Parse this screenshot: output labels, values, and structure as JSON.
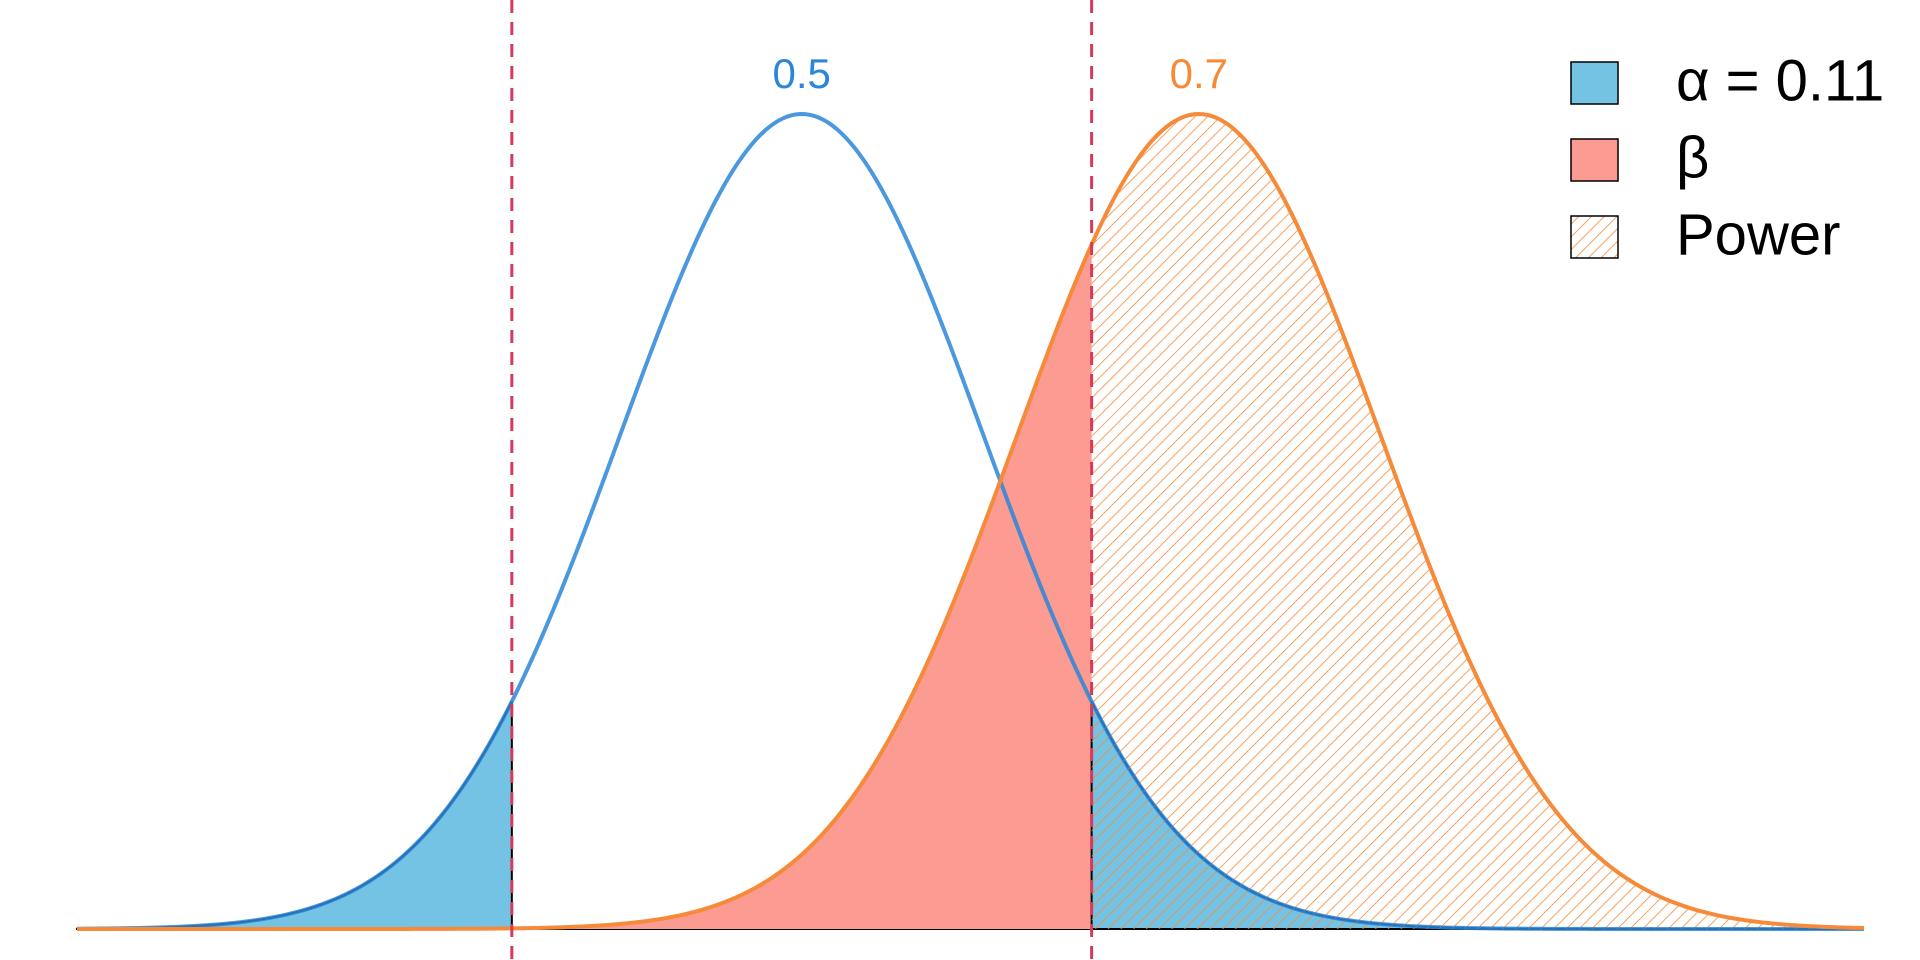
{
  "chart_data": {
    "type": "density",
    "xlim": [
      0.135,
      1.035
    ],
    "sd": 0.0914,
    "distributions": [
      {
        "mean": 0.5,
        "color": "#2b86d9"
      },
      {
        "mean": 0.7,
        "color": "#f58b3a"
      }
    ],
    "critical_values": [
      0.354,
      0.646
    ],
    "critical_color": "#d63a5a",
    "legend": [
      {
        "name": "α = 0.11",
        "color": "#74c3e5"
      },
      {
        "name": "β",
        "color": "#fc9b92"
      },
      {
        "name": "Power",
        "color": "#f58b3a",
        "pattern": "hatch"
      }
    ],
    "legend_position": "top-right"
  }
}
